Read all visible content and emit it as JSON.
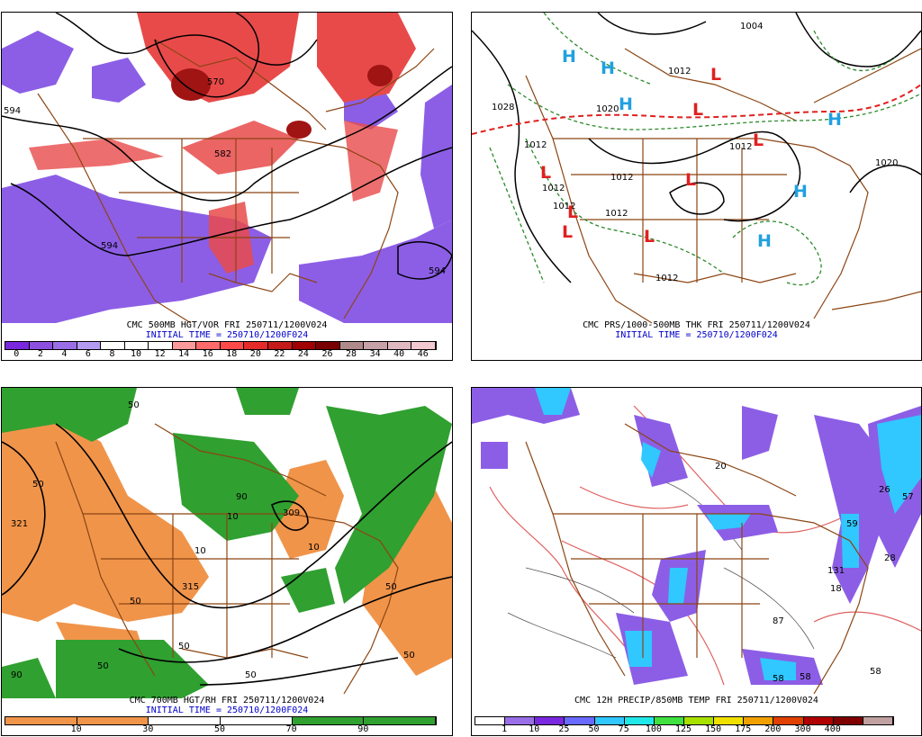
{
  "panels": {
    "p1": {
      "caption1": "CMC 500MB HGT/VOR FRI 250711/1200V024",
      "caption2": "INITIAL TIME = 250710/1200F024",
      "contours": [
        "594",
        "594",
        "594",
        "582",
        "570"
      ],
      "colorbar": {
        "colors": [
          "#7a28e0",
          "#8c4fe0",
          "#9a6ee6",
          "#b39bf2",
          "#ffffff",
          "#ffffff",
          "#ffffff",
          "#ff9a9a",
          "#ff6a6a",
          "#ff4a4a",
          "#e52a2a",
          "#c41a1a",
          "#a00000",
          "#7a0000",
          "#b08a8a",
          "#c8a0a8",
          "#e0b8c0",
          "#f4c8d0"
        ],
        "ticks": [
          "0",
          "2",
          "4",
          "6",
          "8",
          "10",
          "12",
          "14",
          "16",
          "18",
          "20",
          "22",
          "24",
          "26",
          "28",
          "34",
          "40",
          "46"
        ]
      }
    },
    "p2": {
      "caption1": "CMC PRS/1000-500MB THK FRI 250711/1200V024",
      "caption2": "INITIAL TIME = 250710/1200F024",
      "contours": [
        "1004",
        "1028",
        "1012",
        "1020",
        "1012",
        "1012",
        "1012",
        "1012",
        "1012",
        "1012",
        "1012",
        "1020"
      ],
      "highs": [
        "H",
        "H",
        "H",
        "H",
        "H",
        "H"
      ],
      "lows": [
        "L",
        "L",
        "L",
        "L",
        "L",
        "L",
        "L",
        "L"
      ]
    },
    "p3": {
      "caption1": "CMC 700MB HGT/RH FRI 250711/1200V024",
      "caption2": "INITIAL TIME = 250710/1200F024",
      "contours": [
        "321",
        "315",
        "309",
        "50",
        "50",
        "50",
        "50",
        "10",
        "10",
        "90",
        "90",
        "50",
        "50",
        "50",
        "50",
        "10"
      ],
      "colorbar": {
        "colors": [
          "#f0944a",
          "#f0944a",
          "#ffffff",
          "#ffffff",
          "#30a030",
          "#30a030"
        ],
        "ticks": [
          "10",
          "30",
          "50",
          "70",
          "90"
        ]
      }
    },
    "p4": {
      "caption1": "CMC 12H PRECIP/850MB TEMP FRI 250711/1200V024",
      "colorbar": {
        "colors": [
          "#ffffff",
          "#9a6ee6",
          "#7a28e0",
          "#6a6aff",
          "#30c8ff",
          "#20e8e8",
          "#40e040",
          "#a8e000",
          "#f0e000",
          "#f0a000",
          "#e04000",
          "#b00000",
          "#800000",
          "#c0a0a0"
        ],
        "ticks": [
          "1",
          "10",
          "25",
          "50",
          "75",
          "100",
          "125",
          "150",
          "175",
          "200",
          "300",
          "400"
        ]
      },
      "contours": [
        "131",
        "57",
        "59",
        "87",
        "58",
        "58",
        "58",
        "28",
        "20",
        "26",
        "18"
      ]
    }
  }
}
